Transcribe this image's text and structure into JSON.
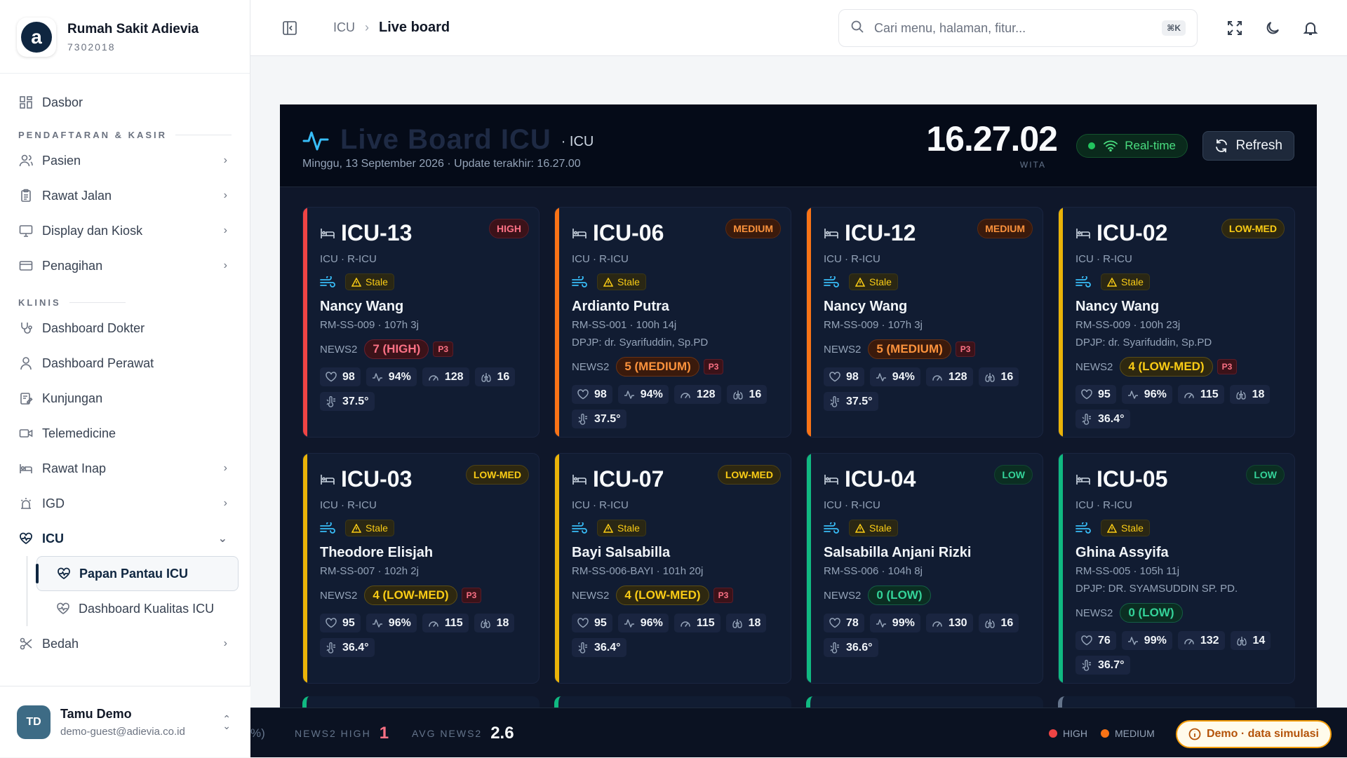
{
  "brand": {
    "name": "Rumah Sakit Adievia",
    "code": "7302018",
    "logo_letter": "a"
  },
  "sidebar": {
    "top_items": [
      {
        "label": "Dasbor",
        "icon": "grid-icon"
      }
    ],
    "sections": [
      {
        "title": "PENDAFTARAN & KASIR"
      },
      {
        "title": "KLINIS"
      }
    ],
    "items": {
      "pasien": "Pasien",
      "rawat_jalan": "Rawat Jalan",
      "display_kiosk": "Display dan Kiosk",
      "penagihan": "Penagihan",
      "dashboard_dokter": "Dashboard Dokter",
      "dashboard_perawat": "Dashboard Perawat",
      "kunjungan": "Kunjungan",
      "telemedicine": "Telemedicine",
      "rawat_inap": "Rawat Inap",
      "igd": "IGD",
      "icu": "ICU",
      "papan_pantau": "Papan Pantau ICU",
      "dashboard_kualitas": "Dashboard Kualitas ICU",
      "bedah": "Bedah"
    },
    "user": {
      "initials": "TD",
      "name": "Tamu Demo",
      "email": "demo-guest@adievia.co.id"
    }
  },
  "topbar": {
    "breadcrumb": [
      "ICU",
      "Live board"
    ],
    "search_placeholder": "Cari menu, halaman, fitur...",
    "shortcut": "⌘K"
  },
  "board": {
    "title": "Live Board ICU",
    "unit": "· ICU",
    "date_line": "Minggu, 13 September 2026 · Update terakhir: 16.27.00",
    "clock": "16.27.02",
    "timezone": "WITA",
    "status": "Real-time",
    "refresh_label": "Refresh",
    "news_label": "NEWS2",
    "stale_label": "Stale",
    "colors": {
      "high": "#ef4444",
      "medium": "#f97316",
      "lowmed": "#eab308",
      "low": "#10b981"
    },
    "beds": [
      {
        "id": "ICU-13",
        "risk": "HIGH",
        "level": "high",
        "unit": "ICU · R-ICU",
        "name": "Nancy Wang",
        "meta": "RM-SS-009 · 107h 3j",
        "dpjp": "",
        "score": "7 (HIGH)",
        "priority": "P3",
        "hr": "98",
        "spo2": "94%",
        "bp": "128",
        "rr": "16",
        "temp": "37.5°"
      },
      {
        "id": "ICU-06",
        "risk": "MEDIUM",
        "level": "med",
        "unit": "ICU · R-ICU",
        "name": "Ardianto Putra",
        "meta": "RM-SS-001 · 100h 14j",
        "dpjp": "DPJP: dr. Syarifuddin, Sp.PD",
        "score": "5 (MEDIUM)",
        "priority": "P3",
        "hr": "98",
        "spo2": "94%",
        "bp": "128",
        "rr": "16",
        "temp": "37.5°"
      },
      {
        "id": "ICU-12",
        "risk": "MEDIUM",
        "level": "med",
        "unit": "ICU · R-ICU",
        "name": "Nancy Wang",
        "meta": "RM-SS-009 · 107h 3j",
        "dpjp": "",
        "score": "5 (MEDIUM)",
        "priority": "P3",
        "hr": "98",
        "spo2": "94%",
        "bp": "128",
        "rr": "16",
        "temp": "37.5°"
      },
      {
        "id": "ICU-02",
        "risk": "LOW-MED",
        "level": "lowmed",
        "unit": "ICU · R-ICU",
        "name": "Nancy Wang",
        "meta": "RM-SS-009 · 100h 23j",
        "dpjp": "DPJP: dr. Syarifuddin, Sp.PD",
        "score": "4 (LOW-MED)",
        "priority": "P3",
        "hr": "95",
        "spo2": "96%",
        "bp": "115",
        "rr": "18",
        "temp": "36.4°"
      },
      {
        "id": "ICU-03",
        "risk": "LOW-MED",
        "level": "lowmed",
        "unit": "ICU · R-ICU",
        "name": "Theodore Elisjah",
        "meta": "RM-SS-007 · 102h 2j",
        "dpjp": "",
        "score": "4 (LOW-MED)",
        "priority": "P3",
        "hr": "95",
        "spo2": "96%",
        "bp": "115",
        "rr": "18",
        "temp": "36.4°"
      },
      {
        "id": "ICU-07",
        "risk": "LOW-MED",
        "level": "lowmed",
        "unit": "ICU · R-ICU",
        "name": "Bayi Salsabilla",
        "meta": "RM-SS-006-BAYI · 101h 20j",
        "dpjp": "",
        "score": "4 (LOW-MED)",
        "priority": "P3",
        "hr": "95",
        "spo2": "96%",
        "bp": "115",
        "rr": "18",
        "temp": "36.4°"
      },
      {
        "id": "ICU-04",
        "risk": "LOW",
        "level": "low",
        "unit": "ICU · R-ICU",
        "name": "Salsabilla Anjani Rizki",
        "meta": "RM-SS-006 · 104h 8j",
        "dpjp": "",
        "score": "0 (LOW)",
        "priority": "",
        "hr": "78",
        "spo2": "99%",
        "bp": "130",
        "rr": "16",
        "temp": "36.6°"
      },
      {
        "id": "ICU-05",
        "risk": "LOW",
        "level": "low",
        "unit": "ICU · R-ICU",
        "name": "Ghina Assyifa",
        "meta": "RM-SS-005 · 105h 11j",
        "dpjp": "DPJP: DR. SYAMSUDDIN SP. PD.",
        "score": "0 (LOW)",
        "priority": "",
        "hr": "76",
        "spo2": "99%",
        "bp": "132",
        "rr": "14",
        "temp": "36.7°"
      }
    ]
  },
  "footer": {
    "partial": "%)",
    "news2_high_label": "NEWS2 HIGH",
    "news2_high_value": "1",
    "avg_label": "AVG NEWS2",
    "avg_value": "2.6",
    "legend": [
      {
        "label": "HIGH",
        "color": "#ef4444"
      },
      {
        "label": "MEDIUM",
        "color": "#f97316"
      }
    ],
    "demo_label": "Demo · data simulasi"
  }
}
